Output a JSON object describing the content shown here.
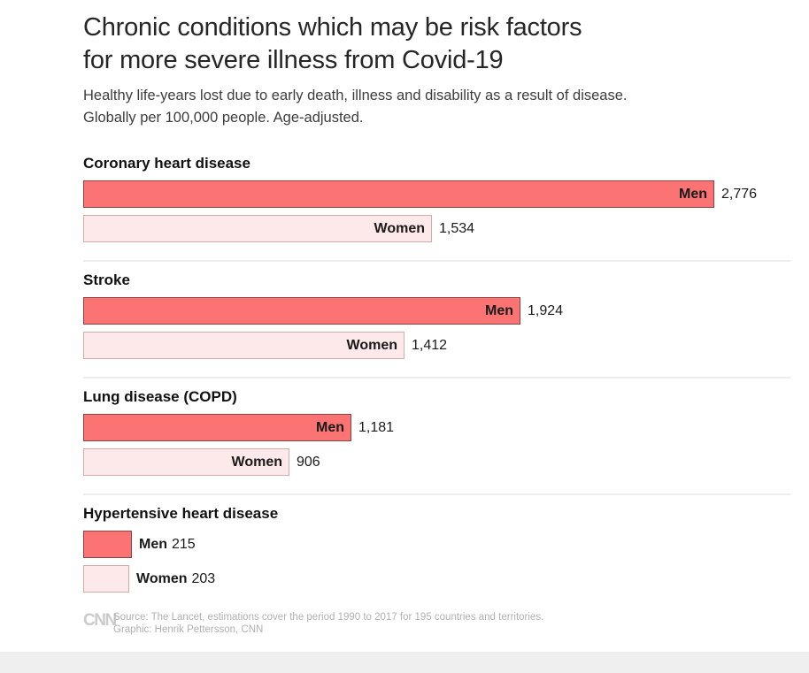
{
  "header": {
    "title_line1": "Chronic conditions which may be risk factors",
    "title_line2": "for more severe illness from Covid-19",
    "subtitle_line1": "Healthy life-years lost due to early death, illness and disability as a result of disease.",
    "subtitle_line2": "Globally per 100,000 people. Age-adjusted."
  },
  "colors": {
    "men_fill": "#fb7373",
    "men_border": "#8a4242",
    "women_fill": "#fde9e9",
    "women_border": "#cfadad",
    "divider": "#ededed",
    "footer_text": "#b1b1b1"
  },
  "chart_data": {
    "type": "bar",
    "orientation": "horizontal",
    "value_unit": "healthy life-years lost per 100,000 people, age-adjusted",
    "axis_range": [
      0,
      2776
    ],
    "grid": false,
    "legend_position": "labels-on-bars",
    "series": [
      {
        "name": "Men",
        "key": "men",
        "color": "#fb7373"
      },
      {
        "name": "Women",
        "key": "women",
        "color": "#fde9e9"
      }
    ],
    "groups": [
      {
        "condition": "Coronary heart disease",
        "men": 2776,
        "men_display": "2,776",
        "women": 1534,
        "women_display": "1,534"
      },
      {
        "condition": "Stroke",
        "men": 1924,
        "men_display": "1,924",
        "women": 1412,
        "women_display": "1,412"
      },
      {
        "condition": "Lung disease (COPD)",
        "men": 1181,
        "men_display": "1,181",
        "women": 906,
        "women_display": "906"
      },
      {
        "condition": "Hypertensive heart disease",
        "men": 215,
        "men_display": "215",
        "women": 203,
        "women_display": "203"
      }
    ]
  },
  "footer": {
    "logo_text": "CNN",
    "source_line1": "Source: The Lancet, estimations cover the period 1990 to 2017 for 195 countries and territories.",
    "source_line2": "Graphic: Henrik Pettersson, CNN"
  }
}
